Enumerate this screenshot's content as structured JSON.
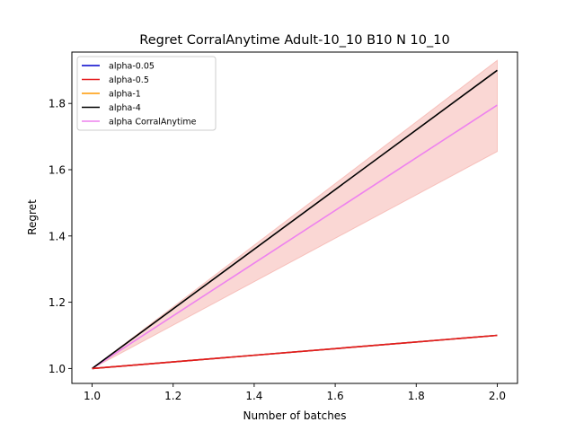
{
  "chart_data": {
    "type": "line",
    "title": "Regret CorralAnytime Adult-10_10 B10 N 10_10",
    "xlabel": "Number of batches",
    "ylabel": "Regret",
    "xlim": [
      0.95,
      2.05
    ],
    "ylim": [
      0.955,
      1.955
    ],
    "xticks": [
      1.0,
      1.2,
      1.4,
      1.6,
      1.8,
      2.0
    ],
    "xtick_labels": [
      "1.0",
      "1.2",
      "1.4",
      "1.6",
      "1.8",
      "2.0"
    ],
    "yticks": [
      1.0,
      1.2,
      1.4,
      1.6,
      1.8
    ],
    "ytick_labels": [
      "1.0",
      "1.2",
      "1.4",
      "1.6",
      "1.8"
    ],
    "grid": false,
    "legend_position": "top-left",
    "x": [
      1,
      2
    ],
    "series": [
      {
        "name": "alpha-0.05",
        "color": "#0000cc",
        "values": [
          1.0,
          1.1
        ]
      },
      {
        "name": "alpha-0.5",
        "color": "#e41a1c",
        "values": [
          1.0,
          1.1
        ]
      },
      {
        "name": "alpha-1",
        "color": "#ff9900",
        "values": [
          1.0,
          1.1
        ]
      },
      {
        "name": "alpha-4",
        "color": "#000000",
        "values": [
          1.0,
          1.9
        ]
      },
      {
        "name": "alpha CorralAnytime",
        "color": "#ee82ee",
        "values": [
          1.0,
          1.795
        ]
      }
    ],
    "bands": [
      {
        "series": "alpha CorralAnytime",
        "color": "#f4a6a0",
        "lower": [
          1.0,
          1.655
        ],
        "upper": [
          1.0,
          1.93
        ]
      }
    ],
    "draw_order": [
      4,
      3,
      0,
      2,
      1
    ]
  }
}
